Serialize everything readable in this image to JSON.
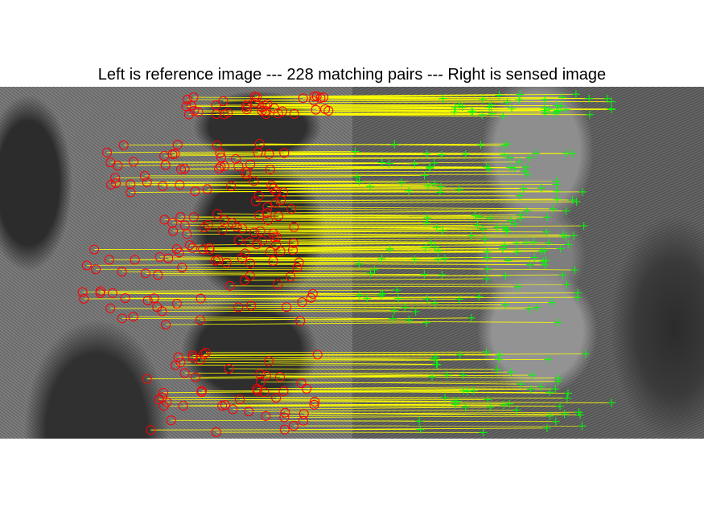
{
  "figure": {
    "title": "Left is reference image --- 228 matching pairs --- Right is sensed image",
    "match_count": 228,
    "left_panel_label": "reference image",
    "right_panel_label": "sensed image",
    "colors": {
      "reference_marker": "#ff0000",
      "sensed_marker": "#00ff00",
      "match_line": "#ffff00",
      "background": "#ffffff"
    },
    "marker_icons": {
      "reference": "circle-icon",
      "sensed": "plus-icon"
    }
  }
}
